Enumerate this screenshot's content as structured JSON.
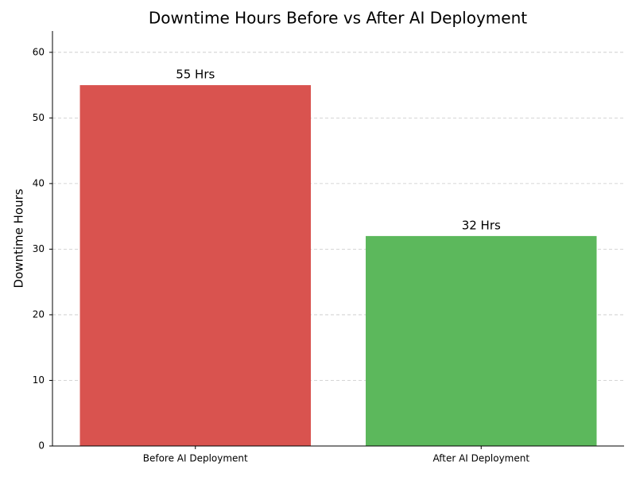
{
  "chart_data": {
    "type": "bar",
    "title": "Downtime Hours Before vs After AI Deployment",
    "ylabel": "Downtime Hours",
    "categories": [
      "Before AI Deployment",
      "After AI Deployment"
    ],
    "values": [
      55,
      32
    ],
    "value_labels": [
      "55 Hrs",
      "32 Hrs"
    ],
    "colors": [
      "#d9534f",
      "#5cb85c"
    ],
    "ylim": [
      0,
      63.25
    ],
    "yticks": [
      0,
      10,
      20,
      30,
      40,
      50,
      60
    ],
    "grid": true
  }
}
